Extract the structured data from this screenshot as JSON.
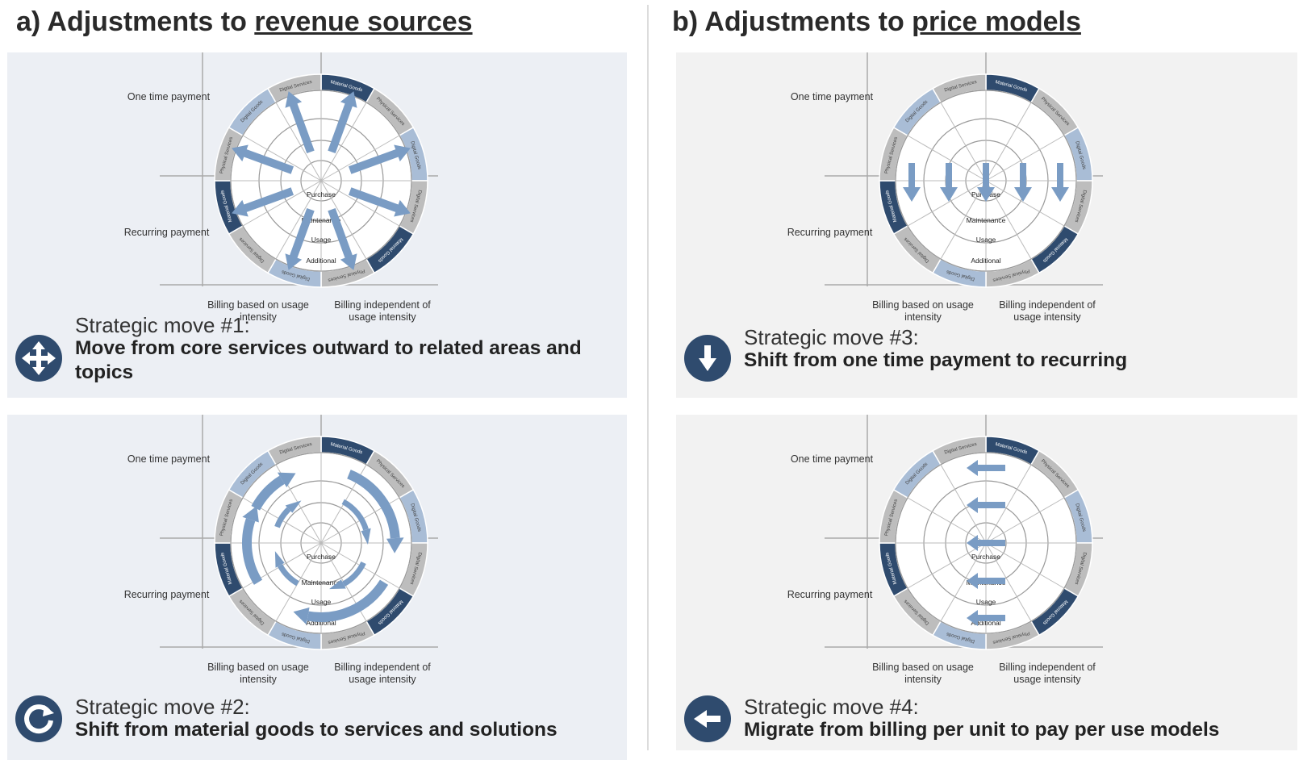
{
  "section_a": {
    "prefix": "a) Adjustments to ",
    "underlined": "revenue sources"
  },
  "section_b": {
    "prefix": "b) Adjustments to ",
    "underlined": "price models"
  },
  "axes": {
    "one_time": "One time payment",
    "recurring": "Recurring payment",
    "billing_usage": "Billing based on usage intensity",
    "billing_independent": "Billing independent of usage intensity"
  },
  "wheel": {
    "rings": [
      "Purchase",
      "Maintenance",
      "Usage",
      "Additional"
    ],
    "segments": [
      "Material Goods",
      "Physical Services",
      "Digital Goods",
      "Digital Services",
      "Material Goods",
      "Physical Services",
      "Digital Goods",
      "Digital Services",
      "Material Goods",
      "Physical Services",
      "Digital Goods",
      "Digital Services"
    ]
  },
  "colors": {
    "dark": "#2f4b6e",
    "light": "#a9bdd6",
    "grey": "#bdbdbd",
    "arrow": "#7a9cc4"
  },
  "moves": [
    {
      "heading": "Strategic move #1:",
      "description": "Move from core services outward to related areas and topics",
      "icon": "expand-arrows-icon"
    },
    {
      "heading": "Strategic move #2:",
      "description": "Shift from material goods to services and solutions",
      "icon": "rotate-icon"
    },
    {
      "heading": "Strategic move #3:",
      "description": "Shift from one time payment to recurring",
      "icon": "arrow-down-icon"
    },
    {
      "heading": "Strategic move #4:",
      "description": "Migrate from billing per unit to pay per use models",
      "icon": "arrow-left-icon"
    }
  ]
}
